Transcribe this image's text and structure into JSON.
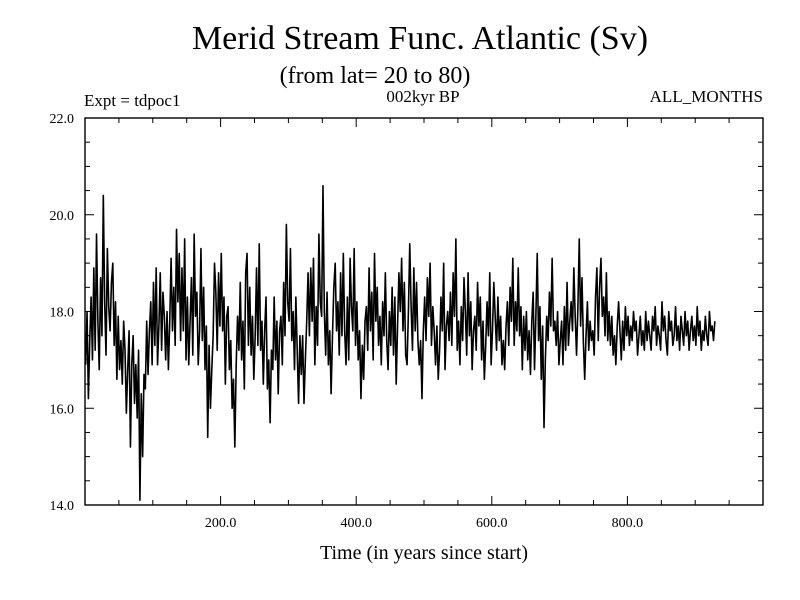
{
  "chart_data": {
    "type": "line",
    "title": "Merid Stream Func. Atlantic (Sv)",
    "subtitle": "(from lat= 20 to 80)",
    "expt_label": "Expt = tdpoc1",
    "period_label": "002kyr BP",
    "months_label": "ALL_MONTHS",
    "xlabel": "Time (in years since start)",
    "ylabel": "",
    "xlim": [
      0,
      1000
    ],
    "ylim": [
      14.0,
      22.0
    ],
    "xticks": [
      200,
      400,
      600,
      800
    ],
    "xtick_labels": [
      "200.0",
      "400.0",
      "600.0",
      "800.0"
    ],
    "yticks": [
      14,
      16,
      18,
      20,
      22
    ],
    "ytick_labels": [
      "14.0",
      "16.0",
      "18.0",
      "20.0",
      "22.0"
    ],
    "series": [
      {
        "name": "Merid Stream Func. Atlantic",
        "mean": 17.6,
        "x_start": 1,
        "x_step": 2,
        "values": [
          16.9,
          18.0,
          16.2,
          17.4,
          18.3,
          17.0,
          18.9,
          17.2,
          19.6,
          17.8,
          16.8,
          18.7,
          17.5,
          20.4,
          18.2,
          17.1,
          19.3,
          18.1,
          17.6,
          18.6,
          19.0,
          17.3,
          18.2,
          16.6,
          17.9,
          16.8,
          17.4,
          16.5,
          17.8,
          17.2,
          15.9,
          16.8,
          17.6,
          15.2,
          16.9,
          17.5,
          16.1,
          16.9,
          15.8,
          17.2,
          14.1,
          16.3,
          15.0,
          16.7,
          16.4,
          17.8,
          16.7,
          17.6,
          18.2,
          16.9,
          18.6,
          17.3,
          18.9,
          16.9,
          17.7,
          18.8,
          17.2,
          18.4,
          17.9,
          17.0,
          18.0,
          16.8,
          17.8,
          19.1,
          17.6,
          18.5,
          17.3,
          19.7,
          18.2,
          19.2,
          17.4,
          18.9,
          17.6,
          19.5,
          17.0,
          18.3,
          16.9,
          17.8,
          18.7,
          17.1,
          19.6,
          17.9,
          18.4,
          16.9,
          17.6,
          19.3,
          17.4,
          18.5,
          16.8,
          17.7,
          15.4,
          17.3,
          16.0,
          16.8,
          17.5,
          19.0,
          18.4,
          17.2,
          18.8,
          17.7,
          19.2,
          17.6,
          18.3,
          16.5,
          17.9,
          18.1,
          16.8,
          17.4,
          16.0,
          16.6,
          15.2,
          16.9,
          17.9,
          17.2,
          18.6,
          17.0,
          17.8,
          16.4,
          18.8,
          19.2,
          17.3,
          18.5,
          17.1,
          17.9,
          16.6,
          17.5,
          18.9,
          17.3,
          19.4,
          17.2,
          17.8,
          16.5,
          17.6,
          18.3,
          16.4,
          17.0,
          15.7,
          17.2,
          16.8,
          18.3,
          17.0,
          17.8,
          16.3,
          17.6,
          17.9,
          16.9,
          18.6,
          17.5,
          19.8,
          18.2,
          17.8,
          19.3,
          17.4,
          18.0,
          16.8,
          18.3,
          17.2,
          16.1,
          17.5,
          16.7,
          17.5,
          16.1,
          17.0,
          17.8,
          18.8,
          17.5,
          18.9,
          17.8,
          19.1,
          16.9,
          18.1,
          17.3,
          19.6,
          18.2,
          17.9,
          20.6,
          18.0,
          17.1,
          18.4,
          16.9,
          17.6,
          16.3,
          17.5,
          18.5,
          19.0,
          17.6,
          18.2,
          17.1,
          18.8,
          17.5,
          19.2,
          17.6,
          16.9,
          18.3,
          17.0,
          19.1,
          18.1,
          17.6,
          19.3,
          17.3,
          18.2,
          17.0,
          17.6,
          16.2,
          17.3,
          16.6,
          17.8,
          18.1,
          17.2,
          18.9,
          17.6,
          18.4,
          17.0,
          19.2,
          17.8,
          18.5,
          17.3,
          17.9,
          16.9,
          18.2,
          17.5,
          18.8,
          17.4,
          16.8,
          18.0,
          17.3,
          18.5,
          17.1,
          18.3,
          16.5,
          17.7,
          18.8,
          18.0,
          19.1,
          17.6,
          18.6,
          17.1,
          16.9,
          18.0,
          19.4,
          18.1,
          17.2,
          18.9,
          17.6,
          18.6,
          17.4,
          16.9,
          17.4,
          16.2,
          17.6,
          18.3,
          17.4,
          18.7,
          17.9,
          19.0,
          17.3,
          18.1,
          17.6,
          16.9,
          17.7,
          16.6,
          17.2,
          18.3,
          17.6,
          19.0,
          16.8,
          17.7,
          18.0,
          17.4,
          18.4,
          17.3,
          18.8,
          17.9,
          19.5,
          17.2,
          17.8,
          16.9,
          18.1,
          17.4,
          18.7,
          18.0,
          17.1,
          18.8,
          17.5,
          18.2,
          16.8,
          17.6,
          17.9,
          17.2,
          18.6,
          17.7,
          18.3,
          17.0,
          17.8,
          16.6,
          17.3,
          18.2,
          17.5,
          18.8,
          16.9,
          17.6,
          18.6,
          17.9,
          17.2,
          18.3,
          17.4,
          17.9,
          16.9,
          17.4,
          16.8,
          17.7,
          18.2,
          17.3,
          18.5,
          17.8,
          19.1,
          17.3,
          18.2,
          17.6,
          18.9,
          17.5,
          18.1,
          16.8,
          17.9,
          17.2,
          18.0,
          17.0,
          17.6,
          16.7,
          17.8,
          18.4,
          16.8,
          17.9,
          19.2,
          17.4,
          18.1,
          16.6,
          17.7,
          15.6,
          17.0,
          17.9,
          17.4,
          18.4,
          17.7,
          19.1,
          17.6,
          17.8,
          17.3,
          18.0,
          16.9,
          17.4,
          17.8,
          16.9,
          18.1,
          17.2,
          18.6,
          17.3,
          17.8,
          18.2,
          17.6,
          18.9,
          17.9,
          17.1,
          18.1,
          19.5,
          17.7,
          18.7,
          17.4,
          16.6,
          17.5,
          18.2,
          17.2,
          17.8,
          17.4,
          17.6,
          17.1,
          18.3,
          18.9,
          17.4,
          18.5,
          19.1,
          17.9,
          18.3,
          17.5,
          18.8,
          17.4,
          18.0,
          17.3,
          17.9,
          17.1,
          17.5,
          16.9,
          17.7,
          18.2,
          17.6,
          17.0,
          17.8,
          17.2,
          18.1,
          17.5,
          17.9,
          17.3,
          17.7,
          17.4,
          18.0,
          17.6,
          17.8,
          17.1,
          17.5,
          17.9,
          17.3,
          17.6,
          17.2,
          18.0,
          17.4,
          17.8,
          17.5,
          17.2,
          17.9,
          17.6,
          18.1,
          17.3,
          17.7,
          17.5,
          17.2,
          18.2,
          17.6,
          17.9,
          17.4,
          17.1,
          18.0,
          17.6,
          17.8,
          17.3,
          17.5,
          18.1,
          17.4,
          17.7,
          17.2,
          17.9,
          17.6,
          17.3,
          18.0,
          17.5,
          17.8,
          17.2,
          17.6,
          17.9,
          17.4,
          17.7,
          17.3,
          18.1,
          17.5,
          17.8,
          17.2,
          17.6,
          17.4,
          17.9,
          17.5,
          17.3,
          18.0,
          17.6,
          17.7,
          17.4,
          17.8
        ]
      }
    ]
  }
}
